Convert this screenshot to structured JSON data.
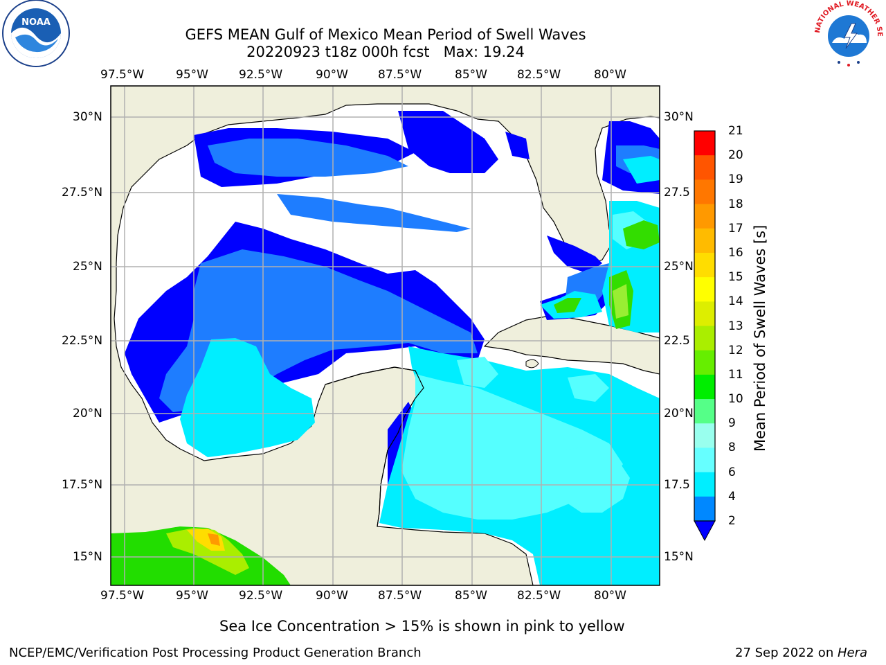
{
  "title_line1": "GEFS MEAN Gulf of Mexico Mean Period of Swell Waves",
  "title_line2": "20220923 t18z 000h fcst   Max: 19.24",
  "lon_ticks": [
    "97.5°W",
    "95°W",
    "92.5°W",
    "90°W",
    "87.5°W",
    "85°W",
    "82.5°W",
    "80°W"
  ],
  "lat_ticks_left": [
    "30°N",
    "27.5°N",
    "25°N",
    "22.5°N",
    "20°N",
    "17.5°N",
    "15°N"
  ],
  "lat_ticks_right": [
    "30°N",
    "27.5",
    "25°N",
    "22.5",
    "20°N",
    "17.5",
    "15°N"
  ],
  "colorbar": {
    "label": "Mean Period of Swell Waves [s]",
    "ticks": [
      "21",
      "20",
      "19",
      "18",
      "17",
      "16",
      "15",
      "14",
      "13",
      "12",
      "11",
      "10",
      "9",
      "8",
      "6",
      "4",
      "2"
    ],
    "colors": [
      "#ff0000",
      "#ff2a00",
      "#ff5500",
      "#ff7700",
      "#ff9900",
      "#ffbb00",
      "#ffdd00",
      "#ffff00",
      "#ddee00",
      "#aaee00",
      "#66ee00",
      "#00ee00",
      "#55ff88",
      "#99ffee",
      "#66ffff",
      "#00eeff",
      "#0088ff",
      "#0000ff"
    ]
  },
  "sea_ice_note": "Sea Ice Concentration > 15% is shown in pink to yellow",
  "footer_left": "NCEP/EMC/Verification Post Processing Product Generation Branch",
  "footer_date": "27 Sep 2022 on ",
  "footer_host": "Hera",
  "logos": {
    "noaa_text": "NOAA",
    "nws_text": "NATIONAL WEATHER SERVICE"
  }
}
